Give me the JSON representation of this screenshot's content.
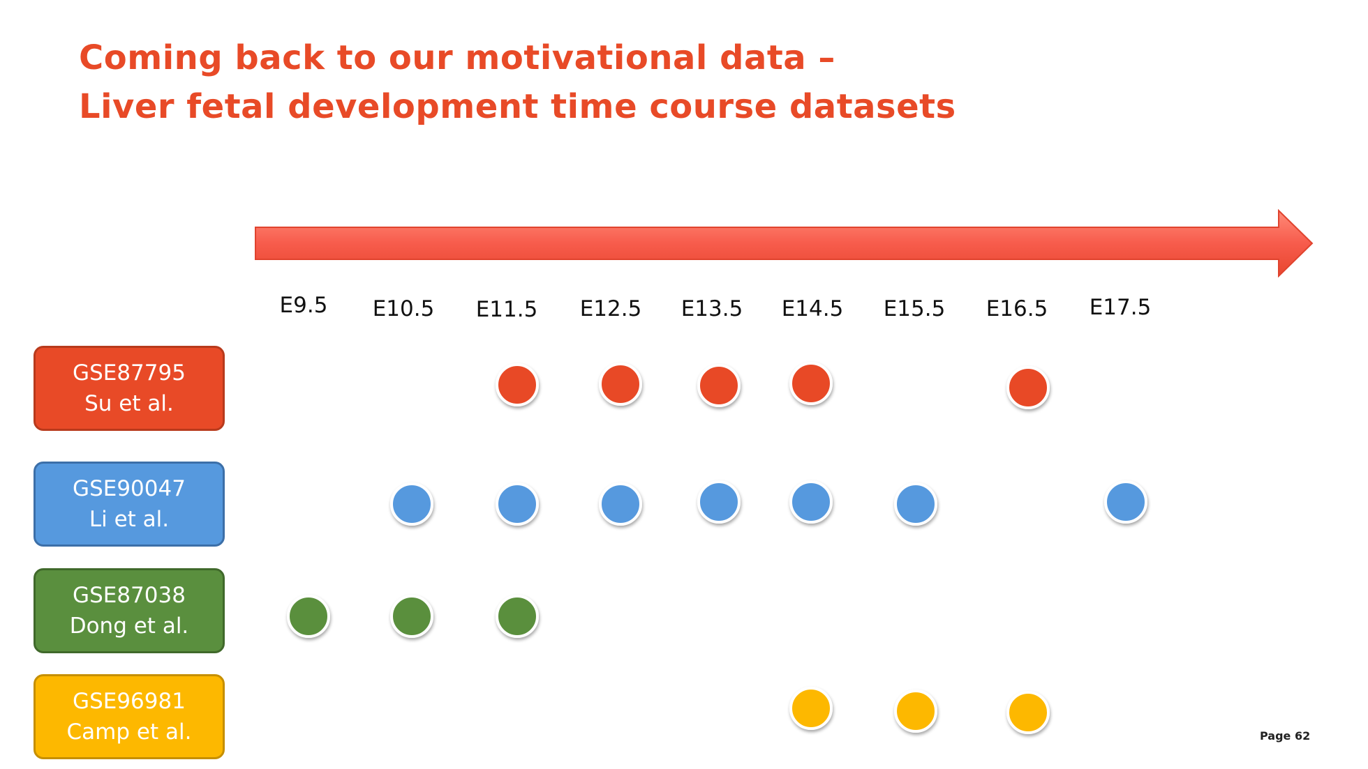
{
  "title": {
    "line1": "Coming back to our motivational data –",
    "line2": "Liver fetal development time course datasets"
  },
  "time_points": [
    "E9.5",
    "E10.5",
    "E11.5",
    "E12.5",
    "E13.5",
    "E14.5",
    "E15.5",
    "E16.5",
    "E17.5"
  ],
  "datasets": [
    {
      "id": "GSE87795",
      "authors": "Su et al.",
      "color": "#E84A27",
      "border": "#B83A1C",
      "samples": [
        "E11.5",
        "E12.5",
        "E13.5",
        "E14.5",
        "E16.5"
      ]
    },
    {
      "id": "GSE90047",
      "authors": "Li et al.",
      "color": "#5699DE",
      "border": "#3C6FA8",
      "samples": [
        "E10.5",
        "E11.5",
        "E12.5",
        "E13.5",
        "E14.5",
        "E15.5",
        "E17.5"
      ]
    },
    {
      "id": "GSE87038",
      "authors": "Dong et al.",
      "color": "#5A8F3E",
      "border": "#40692B",
      "samples": [
        "E9.5",
        "E10.5",
        "E11.5"
      ]
    },
    {
      "id": "GSE96981",
      "authors": "Camp et al.",
      "color": "#FDB800",
      "border": "#C68F00",
      "samples": [
        "E14.5",
        "E15.5",
        "E16.5"
      ]
    }
  ],
  "arrow_color": "#F75C4C",
  "footer": {
    "page_label": "Page 62"
  }
}
